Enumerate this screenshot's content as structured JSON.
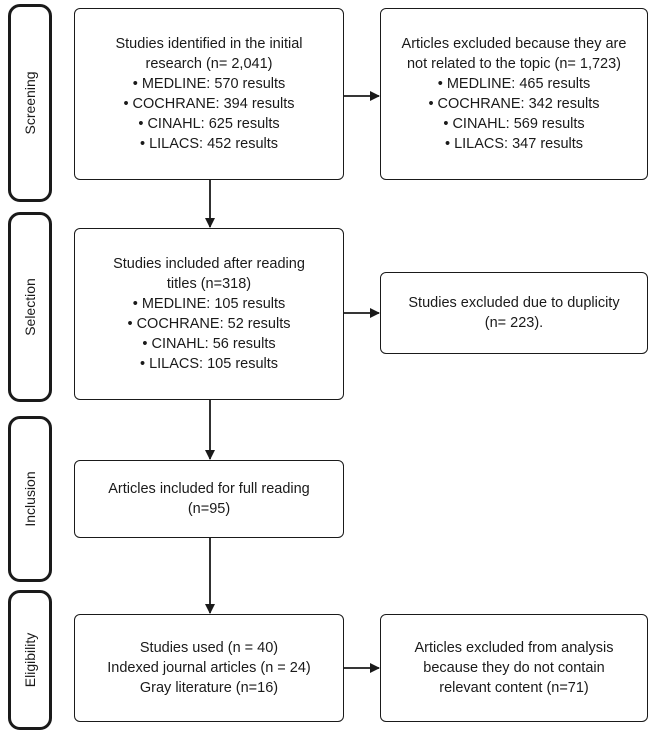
{
  "phases": [
    {
      "label": "Screening"
    },
    {
      "label": "Selection"
    },
    {
      "label": "Inclusion"
    },
    {
      "label": "Eligibility"
    }
  ],
  "boxes": {
    "identified": {
      "lines": [
        "Studies identified in the initial",
        "research (n= 2,041)",
        "• MEDLINE: 570 results",
        "• COCHRANE: 394 results",
        "• CINAHL: 625 results",
        "• LILACS: 452 results"
      ]
    },
    "excluded_topic": {
      "lines": [
        "Articles excluded because they are",
        "not related to the topic (n= 1,723)",
        "• MEDLINE: 465 results",
        "• COCHRANE: 342 results",
        "• CINAHL: 569 results",
        "• LILACS: 347 results"
      ]
    },
    "included_titles": {
      "lines": [
        "Studies included after reading",
        "titles (n=318)",
        "• MEDLINE: 105 results",
        "• COCHRANE: 52 results",
        "• CINAHL: 56 results",
        "• LILACS: 105 results"
      ]
    },
    "excluded_duplicity": {
      "lines": [
        "Studies excluded due to duplicity",
        "(n= 223)."
      ]
    },
    "full_reading": {
      "lines": [
        "Articles included for full reading",
        "(n=95)"
      ]
    },
    "studies_used": {
      "lines": [
        "Studies used (n = 40)",
        "Indexed journal articles (n = 24)",
        "Gray literature (n=16)"
      ]
    },
    "excluded_analysis": {
      "lines": [
        "Articles excluded from analysis",
        "because they do not contain",
        "relevant content (n=71)"
      ]
    }
  }
}
